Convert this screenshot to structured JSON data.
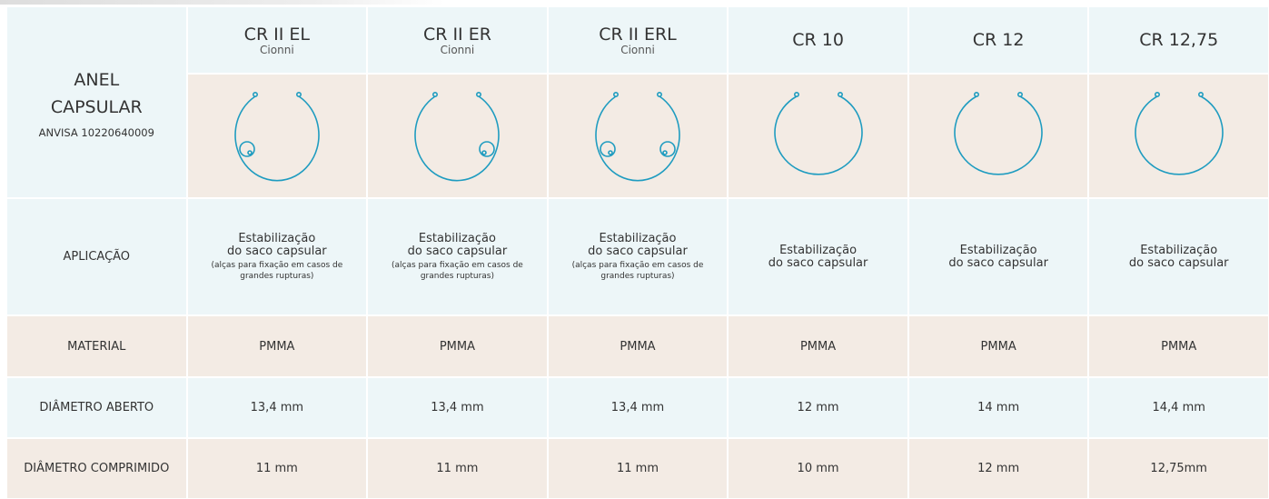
{
  "header": {
    "title_lines": [
      "ANEL",
      "CAPSULAR"
    ],
    "registration": "ANVISA 10220640009"
  },
  "columns": [
    {
      "name": "CR II EL",
      "brand": "Cionni"
    },
    {
      "name": "CR II ER",
      "brand": "Cionni"
    },
    {
      "name": "CR II ERL",
      "brand": "Cionni"
    },
    {
      "name": "CR 10"
    },
    {
      "name": "CR 12"
    },
    {
      "name": "CR 12,75"
    }
  ],
  "application": {
    "label": "APLICAÇÃO",
    "cells": [
      {
        "lines": [
          "Estabilização",
          "do saco capsular"
        ],
        "note": "(alças para fixação em casos de grandes rupturas)"
      },
      {
        "lines": [
          "Estabilização",
          "do saco capsular"
        ],
        "note": "(alças para fixação em casos de grandes rupturas)"
      },
      {
        "lines": [
          "Estabilização",
          "do saco capsular"
        ],
        "note": "(alças para fixação em casos de grandes rupturas)"
      },
      {
        "lines": [
          "Estabilização",
          "do saco capsular"
        ]
      },
      {
        "lines": [
          "Estabilização",
          "do saco capsular"
        ]
      },
      {
        "lines": [
          "Estabilização",
          "do saco capsular"
        ]
      }
    ]
  },
  "rows": [
    {
      "label": "MATERIAL",
      "cells": [
        "PMMA",
        "PMMA",
        "PMMA",
        "PMMA",
        "PMMA",
        "PMMA"
      ]
    },
    {
      "label": "DIÂMETRO ABERTO",
      "cells": [
        "13,4 mm",
        "13,4 mm",
        "13,4 mm",
        "12 mm",
        "14 mm",
        "14,4 mm"
      ]
    },
    {
      "label": "DIÂMETRO COMPRIMIDO",
      "cells": [
        "11 mm",
        "11 mm",
        "11 mm",
        "10 mm",
        "12 mm",
        "12,75mm"
      ]
    }
  ]
}
